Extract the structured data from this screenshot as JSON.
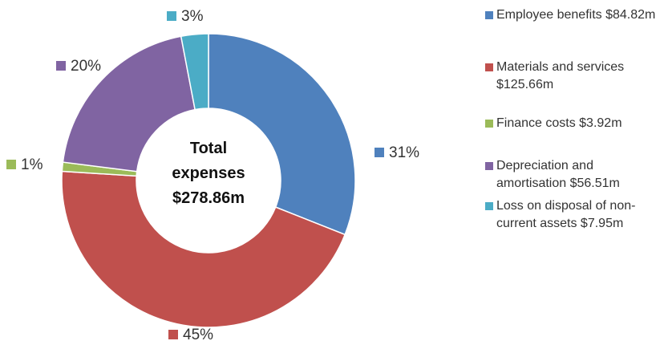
{
  "chart_data": {
    "type": "donut",
    "center_label": "Total expenses $278.86m",
    "categories": [
      "Employee benefits $84.82m",
      "Materials and services $125.66m",
      "Finance costs $3.92m",
      "Depreciation and amortisation $56.51m",
      "Loss on disposal of non-current assets $7.95m"
    ],
    "values": [
      31,
      45,
      1,
      20,
      3
    ],
    "value_labels": [
      "31%",
      "45%",
      "1%",
      "20%",
      "3%"
    ],
    "colors": [
      "#4f81bd",
      "#c0504d",
      "#9bbb59",
      "#8064a2",
      "#4bacc6"
    ],
    "legend": "right"
  }
}
